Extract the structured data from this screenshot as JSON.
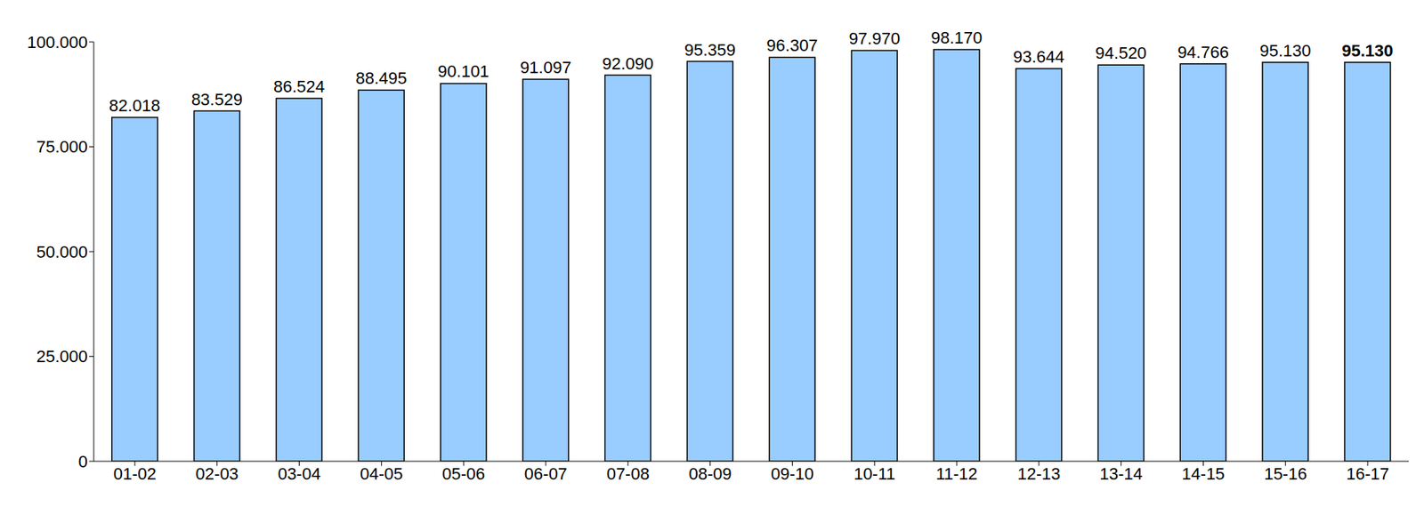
{
  "chart_data": {
    "type": "bar",
    "categories": [
      "01-02",
      "02-03",
      "03-04",
      "04-05",
      "05-06",
      "06-07",
      "07-08",
      "08-09",
      "09-10",
      "10-11",
      "11-12",
      "12-13",
      "13-14",
      "14-15",
      "15-16",
      "16-17"
    ],
    "values": [
      82018,
      83529,
      86524,
      88495,
      90101,
      91097,
      92090,
      95359,
      96307,
      97970,
      98170,
      93644,
      94520,
      94766,
      95130,
      95130
    ],
    "value_labels": [
      "82.018",
      "83.529",
      "86.524",
      "88.495",
      "90.101",
      "91.097",
      "92.090",
      "95.359",
      "96.307",
      "97.970",
      "98.170",
      "93.644",
      "94.520",
      "94.766",
      "95.130",
      "95.130"
    ],
    "color": "#99ccff",
    "ylim": [
      0,
      100000
    ],
    "yticks": [
      0,
      {
        "value": 25000,
        "label": "25.000"
      },
      {
        "value": 50000,
        "label": "50.000"
      },
      {
        "value": 75000,
        "label": "75.000"
      },
      {
        "value": 100000,
        "label": "100.000"
      }
    ],
    "grid": false,
    "data_labels": true
  }
}
